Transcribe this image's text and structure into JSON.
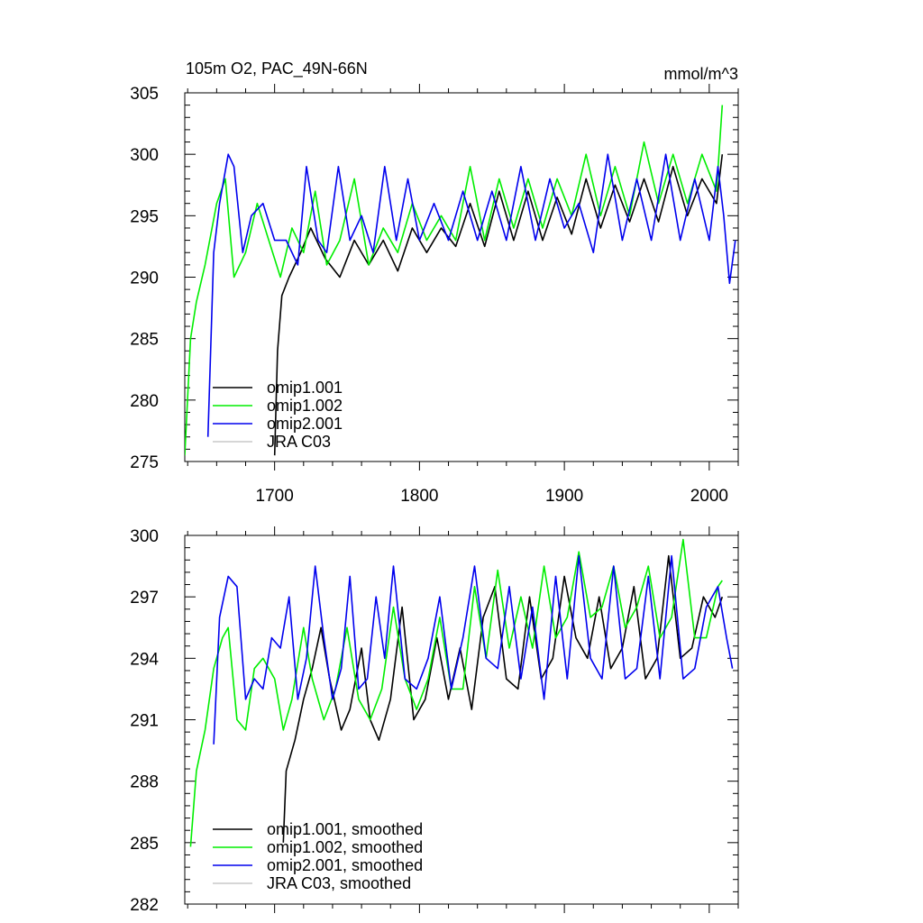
{
  "figure": {
    "title_left": "105m O2, PAC_49N-66N",
    "title_right": "mmol/m^3"
  },
  "chart_data": [
    {
      "type": "line",
      "panel": "top",
      "xlim": [
        1638,
        2020
      ],
      "ylim": [
        275,
        305
      ],
      "xticks": [
        1700,
        1800,
        1900,
        2000
      ],
      "yticks": [
        275,
        280,
        285,
        290,
        295,
        300,
        305
      ],
      "legend_position": "lower-left",
      "series": [
        {
          "name": "omip1.001",
          "color": "#000000",
          "start": 1700,
          "visible": true,
          "x": [
            1700,
            1702,
            1705,
            1710,
            1718,
            1725,
            1735,
            1745,
            1755,
            1765,
            1775,
            1785,
            1795,
            1805,
            1815,
            1825,
            1835,
            1845,
            1855,
            1865,
            1875,
            1885,
            1895,
            1905,
            1915,
            1925,
            1935,
            1945,
            1955,
            1965,
            1975,
            1985,
            1995,
            2005,
            2009
          ],
          "y": [
            275.5,
            284,
            288.5,
            290,
            292,
            294,
            291.5,
            290,
            293,
            291,
            293,
            290.5,
            294,
            292,
            294,
            292.5,
            296,
            292.5,
            297,
            293,
            297,
            293,
            296.5,
            293.5,
            298,
            294,
            297.5,
            294.5,
            298,
            294.5,
            299,
            295,
            298,
            296,
            300
          ]
        },
        {
          "name": "omip1.002",
          "color": "#00ee00",
          "start": 1638,
          "visible": true,
          "x": [
            1638,
            1642,
            1646,
            1652,
            1660,
            1666,
            1672,
            1680,
            1688,
            1696,
            1704,
            1712,
            1720,
            1728,
            1736,
            1745,
            1755,
            1765,
            1775,
            1785,
            1795,
            1805,
            1815,
            1825,
            1835,
            1845,
            1855,
            1865,
            1875,
            1885,
            1895,
            1905,
            1915,
            1925,
            1935,
            1945,
            1955,
            1965,
            1975,
            1985,
            1995,
            2005,
            2009
          ],
          "y": [
            275.5,
            285,
            288,
            291,
            296,
            298,
            290,
            292,
            296,
            293,
            290,
            294,
            292,
            297,
            291,
            293,
            298,
            291,
            294,
            292,
            296,
            293,
            295,
            293,
            299,
            293,
            298,
            294,
            298,
            294,
            298,
            295,
            300,
            295,
            299,
            295,
            301,
            296,
            300,
            296,
            300,
            297,
            304
          ]
        },
        {
          "name": "omip2.001",
          "color": "#0000ee",
          "start": 1654,
          "visible": true,
          "x": [
            1654,
            1658,
            1662,
            1668,
            1672,
            1678,
            1684,
            1692,
            1700,
            1708,
            1716,
            1722,
            1730,
            1736,
            1744,
            1752,
            1760,
            1768,
            1776,
            1784,
            1792,
            1800,
            1810,
            1820,
            1830,
            1840,
            1850,
            1860,
            1870,
            1880,
            1890,
            1900,
            1910,
            1920,
            1930,
            1940,
            1950,
            1960,
            1970,
            1980,
            1990,
            2000,
            2006,
            2010,
            2014,
            2018
          ],
          "y": [
            277,
            292,
            296,
            300,
            299,
            292,
            295,
            296,
            293,
            293,
            291,
            299,
            293,
            292,
            299,
            293,
            295,
            292,
            299,
            293,
            298,
            293,
            296,
            293,
            297,
            293,
            297,
            293,
            299,
            293,
            298,
            294,
            296,
            292,
            300,
            293,
            298,
            293,
            300,
            293,
            298,
            293,
            299,
            295,
            289.5,
            293
          ]
        },
        {
          "name": "JRA C03",
          "color": "#c8c8c8",
          "visible": false,
          "x": [],
          "y": []
        }
      ]
    },
    {
      "type": "line",
      "panel": "bottom",
      "xlim": [
        1638,
        2020
      ],
      "ylim": [
        282,
        300
      ],
      "xticks": [
        1700,
        1800,
        1900,
        2000
      ],
      "yticks": [
        282,
        285,
        288,
        291,
        294,
        297,
        300
      ],
      "legend_position": "lower-left",
      "series": [
        {
          "name": "omip1.001, smoothed",
          "color": "#000000",
          "start": 1706,
          "visible": true,
          "x": [
            1706,
            1708,
            1714,
            1720,
            1726,
            1732,
            1738,
            1746,
            1752,
            1760,
            1766,
            1772,
            1780,
            1788,
            1796,
            1804,
            1812,
            1820,
            1828,
            1836,
            1844,
            1852,
            1860,
            1868,
            1876,
            1884,
            1892,
            1900,
            1908,
            1916,
            1924,
            1932,
            1940,
            1948,
            1956,
            1964,
            1972,
            1980,
            1988,
            1996,
            2004,
            2009
          ],
          "y": [
            285,
            288.5,
            290,
            292,
            293.5,
            295.5,
            293,
            290.5,
            291.5,
            294.5,
            291,
            290,
            292,
            296.5,
            291,
            292,
            295,
            292,
            294.5,
            291.5,
            296,
            297.5,
            293,
            292.5,
            297,
            293,
            294,
            298,
            295,
            294,
            297,
            293.5,
            294.5,
            297.5,
            293,
            294,
            299,
            294,
            294.5,
            297,
            296,
            297
          ]
        },
        {
          "name": "omip1.002, smoothed",
          "color": "#00ee00",
          "start": 1642,
          "visible": true,
          "x": [
            1642,
            1646,
            1652,
            1658,
            1664,
            1668,
            1674,
            1680,
            1686,
            1692,
            1700,
            1706,
            1712,
            1720,
            1726,
            1734,
            1742,
            1750,
            1758,
            1766,
            1774,
            1782,
            1790,
            1798,
            1806,
            1814,
            1822,
            1830,
            1838,
            1846,
            1854,
            1862,
            1870,
            1878,
            1886,
            1894,
            1902,
            1910,
            1918,
            1926,
            1934,
            1942,
            1950,
            1958,
            1966,
            1974,
            1982,
            1990,
            1998,
            2006,
            2009
          ],
          "y": [
            284.8,
            288.5,
            290.5,
            293.5,
            295,
            295.5,
            291,
            290.5,
            293.5,
            294,
            293,
            290.5,
            292,
            295.5,
            293,
            291,
            292.5,
            295.5,
            292,
            291,
            292.5,
            296.5,
            293,
            291.5,
            293,
            296,
            292.5,
            292.5,
            297.5,
            294,
            298.3,
            294.5,
            297,
            294.5,
            298.5,
            295,
            296,
            299.2,
            296,
            296.5,
            298.5,
            295.5,
            296.5,
            298.5,
            295,
            296,
            299.8,
            295,
            295,
            297.5,
            297.8
          ]
        },
        {
          "name": "omip2.001, smoothed",
          "color": "#0000ee",
          "start": 1658,
          "visible": true,
          "x": [
            1658,
            1662,
            1668,
            1674,
            1680,
            1686,
            1692,
            1698,
            1704,
            1710,
            1716,
            1722,
            1728,
            1734,
            1740,
            1746,
            1752,
            1758,
            1764,
            1770,
            1776,
            1782,
            1790,
            1798,
            1806,
            1814,
            1822,
            1830,
            1838,
            1846,
            1854,
            1862,
            1870,
            1878,
            1886,
            1894,
            1902,
            1910,
            1918,
            1926,
            1934,
            1942,
            1950,
            1958,
            1966,
            1974,
            1982,
            1990,
            1998,
            2006,
            2012,
            2016
          ],
          "y": [
            289.8,
            296,
            298,
            297.5,
            292,
            293,
            292.5,
            295,
            294.5,
            297,
            292,
            294,
            298.5,
            295,
            292,
            293.5,
            298,
            292.5,
            293,
            297,
            294,
            298.5,
            293,
            292.5,
            294,
            297,
            292.5,
            295,
            298.5,
            294,
            293.5,
            297.5,
            293,
            296.5,
            292,
            298,
            293,
            299,
            294,
            293,
            298.5,
            293,
            293.5,
            298,
            293,
            299,
            293,
            293.5,
            296.5,
            297.5,
            295,
            293.5
          ]
        },
        {
          "name": "JRA C03, smoothed",
          "color": "#c8c8c8",
          "visible": false,
          "x": [],
          "y": []
        }
      ]
    }
  ]
}
